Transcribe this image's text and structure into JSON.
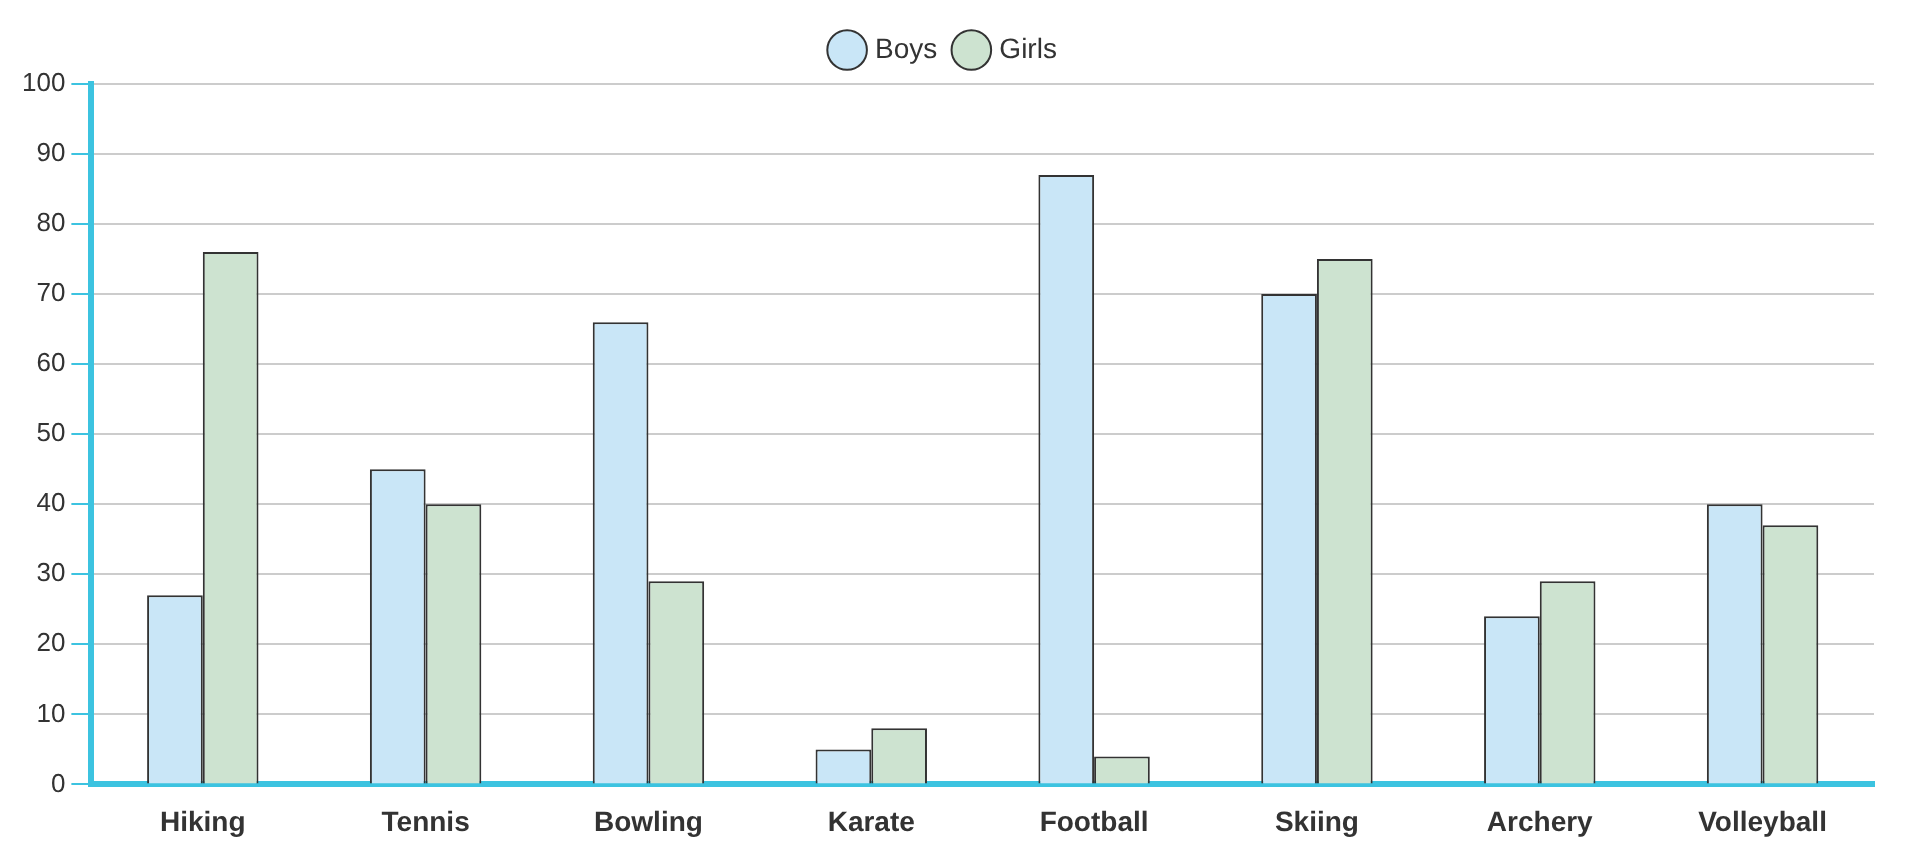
{
  "chart_data": {
    "type": "bar",
    "categories": [
      "Hiking",
      "Tennis",
      "Bowling",
      "Karate",
      "Football",
      "Skiing",
      "Archery",
      "Volleyball"
    ],
    "series": [
      {
        "name": "Boys",
        "color": "#c9e6f7",
        "values": [
          27,
          45,
          66,
          5,
          87,
          70,
          24,
          40
        ]
      },
      {
        "name": "Girls",
        "color": "#cde3d0",
        "values": [
          76,
          40,
          29,
          8,
          4,
          75,
          29,
          37
        ]
      }
    ],
    "ylim": [
      0,
      100
    ],
    "yticks": [
      0,
      10,
      20,
      30,
      40,
      50,
      60,
      70,
      80,
      90,
      100
    ],
    "grid": "y",
    "legend": "top"
  }
}
